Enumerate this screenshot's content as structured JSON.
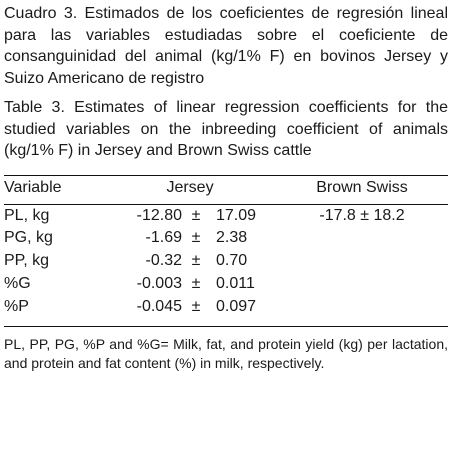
{
  "caption_es": "Cuadro 3. Estimados de los coeficientes de regresión lineal para las variables estudiadas sobre el coeficiente de consanguinidad del animal (kg/1% F) en bovinos Jersey y Suizo Americano de registro",
  "caption_en": "Table 3. Estimates of linear regression coefficients for the studied variables on the inbreeding coefficient of animals (kg/1% F) in Jersey and Brown Swiss cattle",
  "table": {
    "headers": {
      "variable": "Variable",
      "jersey": "Jersey",
      "brown_swiss": "Brown Swiss"
    },
    "rows": [
      {
        "variable": "PL, kg",
        "jersey_mean": "-12.80",
        "pm": "±",
        "jersey_se": "17.09",
        "brown_swiss": "-17.8 ± 18.2"
      },
      {
        "variable": "PG, kg",
        "jersey_mean": "-1.69",
        "pm": "±",
        "jersey_se": "2.38",
        "brown_swiss": ""
      },
      {
        "variable": "PP, kg",
        "jersey_mean": "-0.32",
        "pm": "±",
        "jersey_se": "0.70",
        "brown_swiss": ""
      },
      {
        "variable": "%G",
        "jersey_mean": "-0.003",
        "pm": "±",
        "jersey_se": "0.011",
        "brown_swiss": ""
      },
      {
        "variable": "%P",
        "jersey_mean": "-0.045",
        "pm": "±",
        "jersey_se": "0.097",
        "brown_swiss": ""
      }
    ]
  },
  "footnote": "PL, PP, PG, %P and %G= Milk, fat, and protein yield (kg) per lactation, and protein and fat content (%) in milk, respectively."
}
